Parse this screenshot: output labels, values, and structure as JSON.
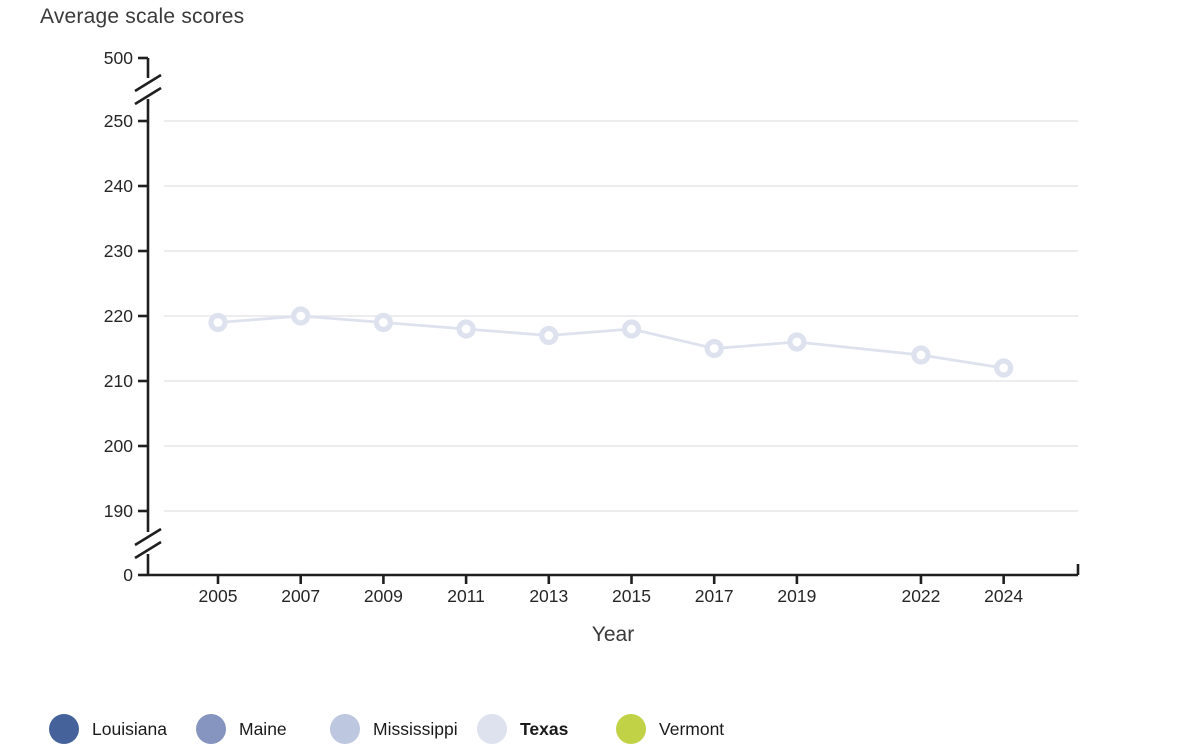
{
  "chart_data": {
    "type": "line",
    "title": "Average scale scores",
    "xlabel": "Year",
    "x": [
      2005,
      2007,
      2009,
      2011,
      2013,
      2015,
      2017,
      2019,
      2022,
      2024
    ],
    "series": [
      {
        "name": "Texas",
        "values": [
          219,
          220,
          219,
          218,
          217,
          218,
          215,
          216,
          214,
          212
        ],
        "color": "#dde2ee"
      }
    ],
    "y_ticks": [
      0,
      190,
      200,
      210,
      220,
      230,
      240,
      250,
      500
    ],
    "y_axis_breaks": [
      [
        0,
        190
      ],
      [
        250,
        500
      ]
    ],
    "ylim_visible_band": [
      190,
      250
    ],
    "grid": true,
    "legend_position": "bottom",
    "legend": [
      {
        "label": "Louisiana",
        "color": "#45629b",
        "bold": false
      },
      {
        "label": "Maine",
        "color": "#8595bf",
        "bold": false
      },
      {
        "label": "Mississippi",
        "color": "#bdc7df",
        "bold": false
      },
      {
        "label": "Texas",
        "color": "#dde2ee",
        "bold": true
      },
      {
        "label": "Vermont",
        "color": "#c2d247",
        "bold": false
      }
    ],
    "colors": {
      "axis": "#1f1f1f",
      "tick_text": "#262626",
      "grid": "#e7e7ec",
      "title_text": "#3a3a3a"
    }
  }
}
